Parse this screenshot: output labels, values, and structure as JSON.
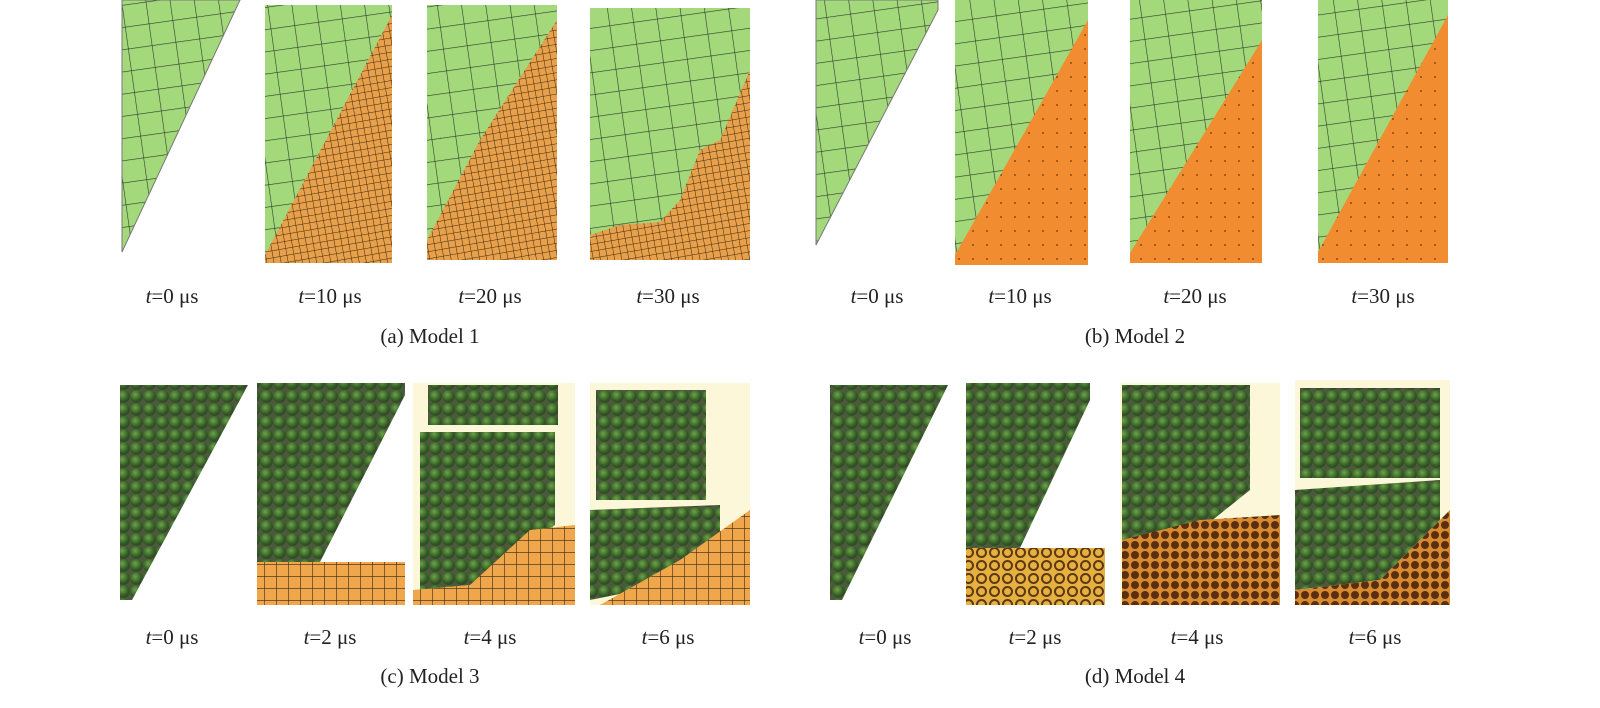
{
  "panels": [
    {
      "caption": "(a) Model 1",
      "frames": [
        {
          "var": "t",
          "rest": "=0 μs"
        },
        {
          "var": "t",
          "rest": "=10 μs"
        },
        {
          "var": "t",
          "rest": "=20 μs"
        },
        {
          "var": "t",
          "rest": "=30 μs"
        }
      ]
    },
    {
      "caption": "(b) Model 2",
      "frames": [
        {
          "var": "t",
          "rest": "=0 μs"
        },
        {
          "var": "t",
          "rest": "=10 μs"
        },
        {
          "var": "t",
          "rest": "=20 μs"
        },
        {
          "var": "t",
          "rest": "=30 μs"
        }
      ]
    },
    {
      "caption": "(c) Model 3",
      "frames": [
        {
          "var": "t",
          "rest": "=0 μs"
        },
        {
          "var": "t",
          "rest": "=2 μs"
        },
        {
          "var": "t",
          "rest": "=4 μs"
        },
        {
          "var": "t",
          "rest": "=6 μs"
        }
      ]
    },
    {
      "caption": "(d) Model 4",
      "frames": [
        {
          "var": "t",
          "rest": "=0 μs"
        },
        {
          "var": "t",
          "rest": "=2 μs"
        },
        {
          "var": "t",
          "rest": "=4 μs"
        },
        {
          "var": "t",
          "rest": "=6 μs"
        }
      ]
    }
  ]
}
